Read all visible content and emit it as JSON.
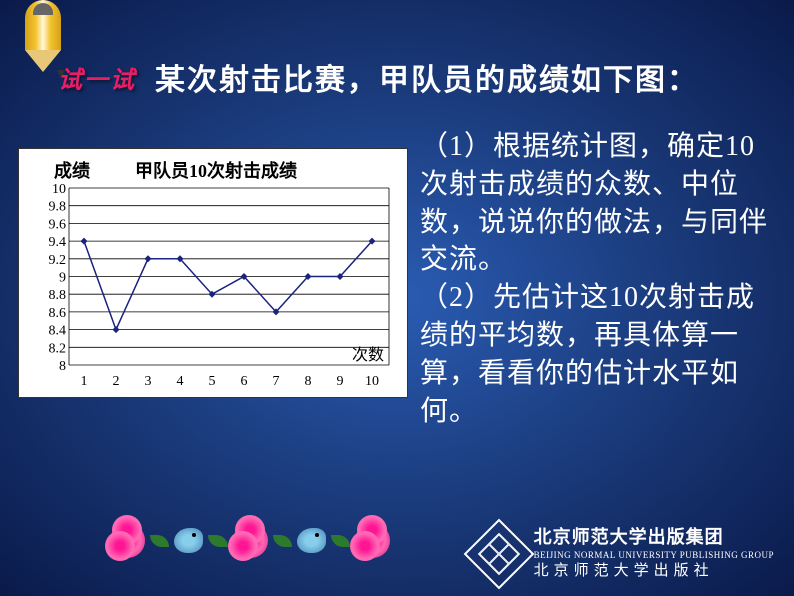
{
  "tryLabel": "试一试",
  "title": "某次射击比赛，甲队员的成绩如下图：",
  "chart": {
    "type": "line",
    "ylabel": "成绩",
    "title": "甲队员10次射击成绩",
    "xlabel": "次数",
    "yticks": [
      8,
      8.2,
      8.4,
      8.6,
      8.8,
      9,
      9.2,
      9.4,
      9.6,
      9.8,
      10
    ],
    "xticks": [
      1,
      2,
      3,
      4,
      5,
      6,
      7,
      8,
      9,
      10
    ],
    "values": [
      9.4,
      8.4,
      9.2,
      9.2,
      8.8,
      9.0,
      8.6,
      9.0,
      9.0,
      9.4
    ],
    "ylim": [
      8,
      10
    ],
    "xlim": [
      1,
      10
    ],
    "line_color": "#1a237e",
    "marker_color": "#1a237e",
    "marker_style": "diamond",
    "marker_size": 7,
    "line_width": 1.5,
    "grid_color": "#000000",
    "background_color": "#ffffff",
    "tick_fontsize": 14,
    "label_fontsize": 18
  },
  "question1": "（1）根据统计图，确定10次射击成绩的众数、中位数，说说你的做法，与同伴交流。",
  "question2": "（2）先估计这10次射击成绩的平均数，再具体算一算，看看你的估计水平如何。",
  "publisher": {
    "line1": "北京师范大学出版集团",
    "line2": "BEIJING NORMAL UNIVERSITY PUBLISHING GROUP",
    "line3": "北京师范大学出版社"
  },
  "colors": {
    "bg_center": "#2a5cb3",
    "bg_edge": "#0a1a4a",
    "text_white": "#ffffff",
    "try_pink": "#e91e63"
  }
}
